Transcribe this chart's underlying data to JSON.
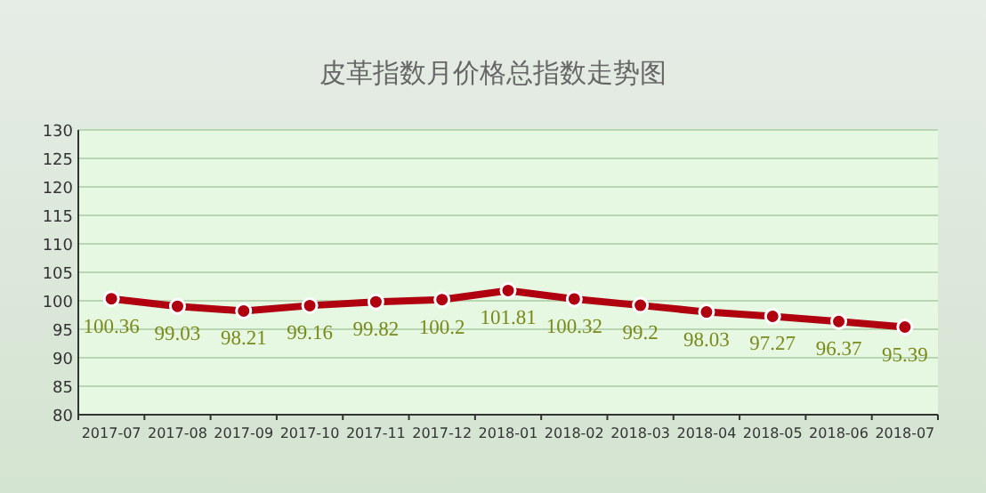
{
  "chart_data": {
    "type": "line",
    "title": "皮革指数月价格总指数走势图",
    "categories": [
      "2017-07",
      "2017-08",
      "2017-09",
      "2017-10",
      "2017-11",
      "2017-12",
      "2018-01",
      "2018-02",
      "2018-03",
      "2018-04",
      "2018-05",
      "2018-06",
      "2018-07"
    ],
    "series": [
      {
        "color": "#b0000f",
        "values": [
          100.36,
          99.03,
          98.21,
          99.16,
          99.82,
          100.2,
          101.81,
          100.32,
          99.2,
          98.03,
          97.27,
          96.37,
          95.39
        ]
      }
    ],
    "ylim": [
      80,
      130
    ],
    "yticks": [
      80,
      85,
      90,
      95,
      100,
      105,
      110,
      115,
      120,
      125,
      130
    ],
    "grid": "y",
    "marker": "circle",
    "data_labels": true
  }
}
